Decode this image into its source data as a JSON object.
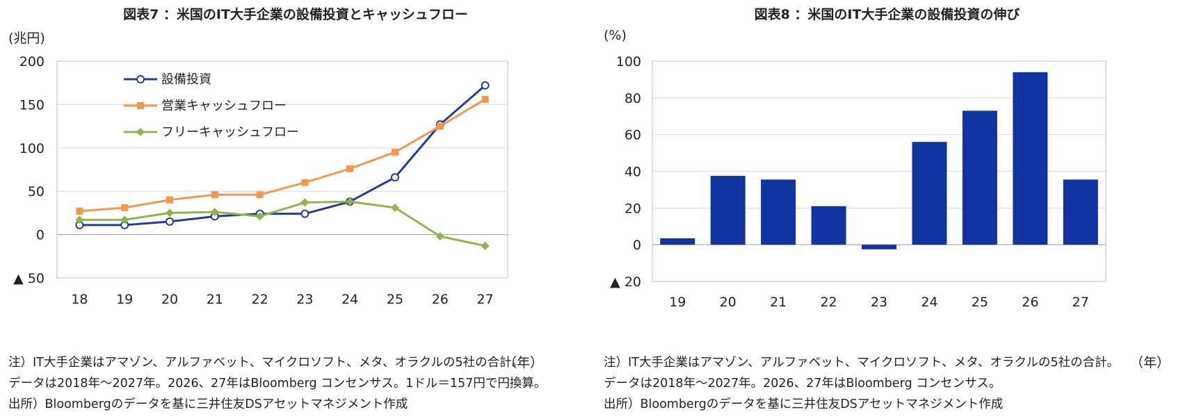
{
  "left": {
    "title": "図表7 ：米国のIT大手企業の設備投資とキャッシュフロー",
    "unit": "(兆円)",
    "year_unit": "（年）",
    "notes": [
      "注）IT大手企業はアマゾン、アルファベット、マイクロソフト、メタ、オラクルの5社の合計。",
      "データは2018年～2027年。2026、27年はBloomberg コンセンサス。1ドル＝157円で円換算。",
      "出所）Bloombergのデータを基に三井住友DSアセットマネジメント作成"
    ]
  },
  "right": {
    "title": "図表8 ：米国のIT大手企業の設備投資の伸び",
    "unit": "(%)",
    "year_unit": "（年）",
    "notes": [
      "注）IT大手企業はアマゾン、アルファベット、マイクロソフト、メタ、オラクルの5社の合計。",
      "データは2018年～2027年。2026、27年はBloomberg コンセンサス。",
      "出所）Bloombergのデータを基に三井住友DSアセットマネジメント作成"
    ]
  },
  "chart_data": [
    {
      "type": "line",
      "title": "図表7 ：米国のIT大手企業の設備投資とキャッシュフロー",
      "ylabel": "(兆円)",
      "xlabel": "（年）",
      "x": [
        "18",
        "19",
        "20",
        "21",
        "22",
        "23",
        "24",
        "25",
        "26",
        "27"
      ],
      "ylim": [
        -50,
        200
      ],
      "yticks": [
        -50,
        0,
        50,
        100,
        150,
        200
      ],
      "ytick_labels": [
        "▲ 50",
        "0",
        "50",
        "100",
        "150",
        "200"
      ],
      "legend_position": "top-left",
      "grid": true,
      "series": [
        {
          "name": "設備投資",
          "color": "#1f3c98",
          "marker": "circle-open",
          "values": [
            11,
            11,
            15,
            21,
            24,
            24,
            38,
            66,
            127,
            172
          ]
        },
        {
          "name": "営業キャッシュフロー",
          "color": "#f4974d",
          "marker": "square",
          "values": [
            27,
            31,
            40,
            46,
            46,
            60,
            76,
            95,
            125,
            156
          ]
        },
        {
          "name": "フリーキャッシュフロー",
          "color": "#8fb54a",
          "marker": "diamond",
          "values": [
            17,
            17,
            25,
            26,
            21,
            37,
            38,
            31,
            -2,
            -13
          ]
        }
      ]
    },
    {
      "type": "bar",
      "title": "図表8 ：米国のIT大手企業の設備投資の伸び",
      "ylabel": "(%)",
      "xlabel": "（年）",
      "categories": [
        "19",
        "20",
        "21",
        "22",
        "23",
        "24",
        "25",
        "26",
        "27"
      ],
      "values": [
        3.5,
        37.5,
        35.5,
        21,
        -2.5,
        56,
        73,
        94,
        35.5
      ],
      "color": "#1234a0",
      "ylim": [
        -20,
        100
      ],
      "yticks": [
        -20,
        0,
        20,
        40,
        60,
        80,
        100
      ],
      "ytick_labels": [
        "▲ 20",
        "0",
        "20",
        "40",
        "60",
        "80",
        "100"
      ],
      "grid": true
    }
  ]
}
